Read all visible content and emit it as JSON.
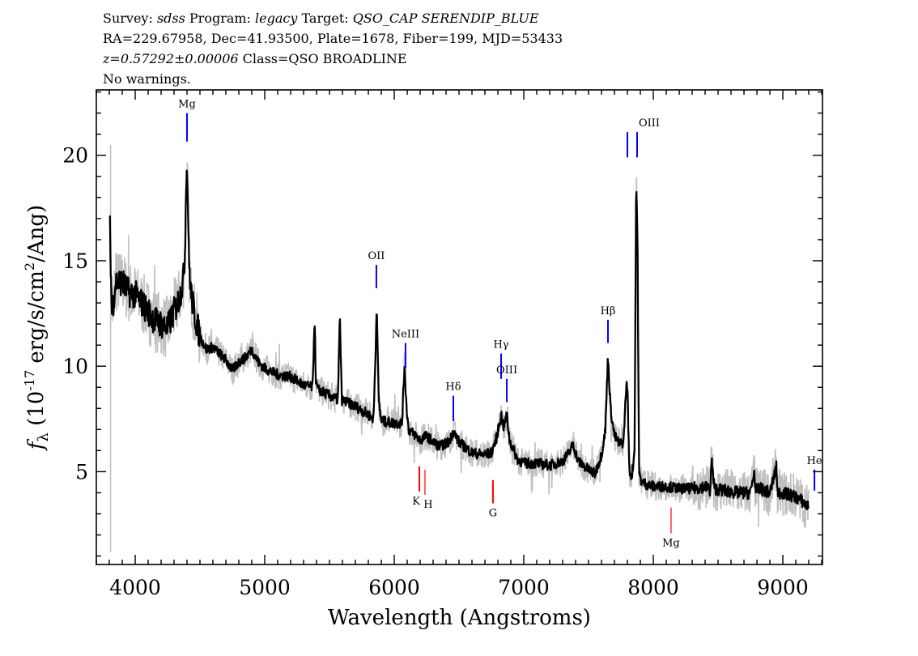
{
  "header": {
    "line1": {
      "survey_label": "Survey: ",
      "survey": "sdss",
      "program_label": " Program: ",
      "program": "legacy",
      "target_label": " Target: ",
      "target": "QSO_CAP SERENDIP_BLUE"
    },
    "line2": "RA=229.67958, Dec=41.93500, Plate=1678, Fiber=199, MJD=53433",
    "line3": {
      "z": "z=0.57292±0.00006",
      "class": " Class=QSO BROADLINE"
    },
    "line4": "No warnings."
  },
  "chart_data": {
    "type": "line",
    "xlabel": "Wavelength (Angstroms)",
    "ylabel": {
      "symbol": "f",
      "sub": "λ",
      "pre": " (10",
      "sup": "-17",
      "mid": " erg/s/cm",
      "sup2": "2",
      "post": "/Ang)"
    },
    "xlim": [
      3700,
      9306
    ],
    "ylim": [
      0.6,
      23.1
    ],
    "xticks": [
      4000,
      5000,
      6000,
      7000,
      8000,
      9000
    ],
    "xtick_labels": [
      "4000",
      "5000",
      "6000",
      "7000",
      "8000",
      "9000"
    ],
    "yticks": [
      5,
      10,
      15,
      20
    ],
    "ytick_labels": [
      "5",
      "10",
      "15",
      "20"
    ],
    "x_minor_step": 100,
    "y_minor_step": 1,
    "grid": false,
    "colors": {
      "flux": "#000000",
      "error": "#c0c0c0",
      "emission": "#0000ff",
      "absorption": "#ff0000"
    },
    "series": [
      {
        "role": "flux",
        "x": [
          3805,
          3820,
          3850,
          3900,
          3950,
          4000,
          4050,
          4100,
          4150,
          4200,
          4250,
          4300,
          4340,
          4370,
          4385,
          4395,
          4405,
          4415,
          4430,
          4460,
          4500,
          4550,
          4600,
          4650,
          4700,
          4750,
          4800,
          4850,
          4900,
          4950,
          5000,
          5100,
          5200,
          5300,
          5370,
          5385,
          5395,
          5410,
          5500,
          5565,
          5580,
          5595,
          5700,
          5800,
          5840,
          5855,
          5865,
          5880,
          5900,
          6000,
          6060,
          6080,
          6090,
          6110,
          6150,
          6200,
          6250,
          6300,
          6350,
          6420,
          6456,
          6500,
          6600,
          6700,
          6750,
          6790,
          6825,
          6845,
          6869,
          6890,
          6950,
          7000,
          7100,
          7200,
          7300,
          7350,
          7380,
          7420,
          7500,
          7550,
          7600,
          7630,
          7650,
          7670,
          7700,
          7740,
          7770,
          7790,
          7800,
          7815,
          7835,
          7855,
          7868,
          7878,
          7890,
          7910,
          7950,
          8000,
          8100,
          8200,
          8300,
          8400,
          8440,
          8450,
          8470,
          8550,
          8650,
          8750,
          8780,
          8790,
          8820,
          8900,
          8950,
          8960,
          8990,
          9050,
          9100,
          9150,
          9200
        ],
        "y": [
          16.5,
          12.5,
          14.0,
          14.0,
          13.5,
          13.4,
          13.0,
          12.6,
          12.2,
          12.0,
          11.8,
          12.6,
          13.2,
          14.0,
          15.5,
          19.6,
          18.5,
          15.0,
          13.5,
          12.4,
          11.4,
          10.8,
          10.9,
          10.6,
          10.3,
          9.8,
          10.2,
          10.4,
          10.8,
          10.2,
          9.9,
          9.6,
          9.5,
          9.1,
          9.0,
          12.4,
          9.2,
          8.9,
          8.6,
          8.4,
          12.4,
          8.4,
          8.1,
          7.7,
          7.5,
          10.5,
          13.0,
          8.3,
          7.4,
          7.3,
          7.3,
          10.2,
          8.5,
          7.0,
          6.8,
          6.5,
          6.7,
          6.4,
          6.2,
          6.4,
          6.9,
          6.4,
          5.9,
          5.8,
          5.9,
          6.6,
          7.7,
          7.1,
          7.7,
          6.5,
          5.6,
          5.4,
          5.4,
          5.3,
          5.5,
          5.9,
          6.3,
          5.5,
          5.1,
          4.9,
          5.8,
          7.0,
          10.5,
          8.0,
          6.7,
          6.3,
          6.4,
          9.0,
          9.1,
          5.0,
          4.8,
          6.0,
          18.9,
          16.0,
          4.9,
          4.5,
          4.4,
          4.3,
          4.3,
          4.2,
          4.2,
          4.3,
          4.1,
          5.6,
          4.2,
          4.1,
          4.0,
          4.0,
          5.0,
          4.1,
          4.2,
          4.0,
          5.2,
          4.0,
          4.0,
          3.9,
          3.8,
          3.6,
          3.3
        ]
      }
    ],
    "line_markers": [
      {
        "label": "Mg",
        "wavelength": 4400,
        "type": "emission",
        "y_range": [
          20.65,
          22.0
        ],
        "label_pos": "above"
      },
      {
        "label": "OII",
        "wavelength": 5862,
        "type": "emission",
        "y_range": [
          13.7,
          14.8
        ],
        "label_pos": "above"
      },
      {
        "label": "NeIII",
        "wavelength": 6087,
        "type": "emission",
        "y_range": [
          9.9,
          11.1
        ],
        "label_pos": "above"
      },
      {
        "label": "Hδ",
        "wavelength": 6456,
        "type": "emission",
        "y_range": [
          7.4,
          8.6
        ],
        "label_pos": "above"
      },
      {
        "label": "Hγ",
        "wavelength": 6825,
        "type": "emission",
        "y_range": [
          9.4,
          10.6
        ],
        "label_pos": "above"
      },
      {
        "label": "OIII",
        "wavelength": 6869,
        "type": "emission",
        "y_range": [
          8.3,
          9.4
        ],
        "label_pos": "above"
      },
      {
        "label": "Hβ",
        "wavelength": 7650,
        "type": "emission",
        "y_range": [
          11.1,
          12.2
        ],
        "label_pos": "above"
      },
      {
        "label": "",
        "wavelength": 7800,
        "type": "emission",
        "y_range": [
          19.9,
          21.1
        ],
        "label_pos": "above"
      },
      {
        "label": "OIII",
        "wavelength": 7875,
        "type": "emission",
        "y_range": [
          19.9,
          21.1
        ],
        "label_pos": "above",
        "label_offset_x": 15
      },
      {
        "label": "He",
        "wavelength": 9244,
        "type": "emission",
        "y_range": [
          4.1,
          5.1
        ],
        "label_pos": "above"
      },
      {
        "label": "K",
        "wavelength": 6194,
        "type": "absorption",
        "y_range": [
          4.06,
          5.25
        ],
        "label_pos": "below",
        "label_offset_x": -4
      },
      {
        "label": "H",
        "wavelength": 6237,
        "type": "absorption",
        "y_range": [
          3.9,
          5.1
        ],
        "label_pos": "below",
        "label_offset_x": 4,
        "thin": true
      },
      {
        "label": "G",
        "wavelength": 6762,
        "type": "absorption",
        "y_range": [
          3.5,
          4.6
        ],
        "label_pos": "below"
      },
      {
        "label": "Mg",
        "wavelength": 8137,
        "type": "absorption",
        "y_range": [
          2.07,
          3.3
        ],
        "label_pos": "below",
        "thin": true
      }
    ]
  }
}
